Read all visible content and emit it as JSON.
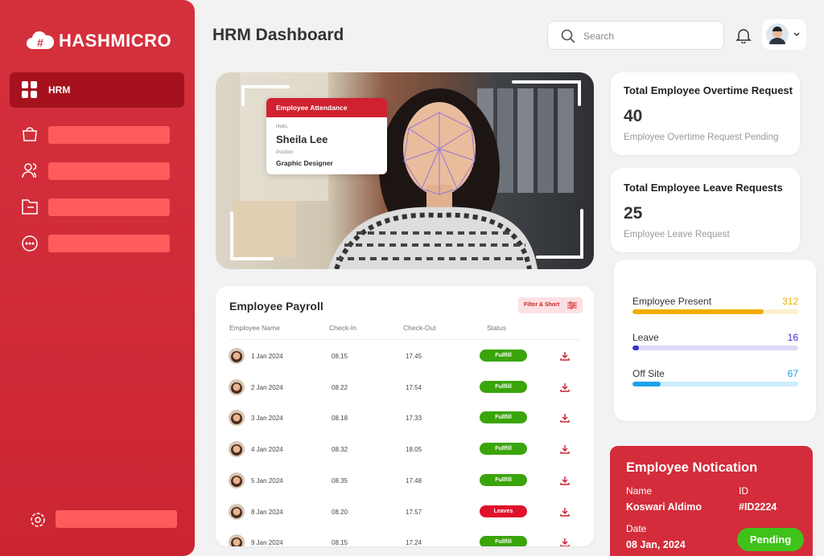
{
  "brand": "HASHMICRO",
  "sidebar": {
    "active_item": "HRM"
  },
  "header": {
    "title": "HRM Dashboard",
    "search_placeholder": "Search"
  },
  "attendance_card": {
    "title": "Employee Attendance",
    "greeting": "Hello,",
    "name": "Sheila Lee",
    "position_label": "Position",
    "position": "Graphic Designer"
  },
  "overtime_card": {
    "title": "Total Employee Overtime Request",
    "value": 40,
    "caption": "Employee Overtime Request Pending"
  },
  "leave_card": {
    "title": "Total Employee Leave Requests",
    "value": 25,
    "caption": "Employee Leave Request"
  },
  "presence": {
    "items": [
      {
        "label": "Employee Present",
        "value": 312,
        "color": "#f2ad00",
        "track": "#fcf0cc"
      },
      {
        "label": "Leave",
        "value": 16,
        "color": "#3a2ec4",
        "track": "#dedaf7"
      },
      {
        "label": "Off Site",
        "value": 67,
        "color": "#1ba2ea",
        "track": "#cdeefb"
      }
    ]
  },
  "payroll": {
    "title": "Employee Payroll",
    "filter_button": "Filter & Short",
    "columns": [
      "Employee Name",
      "Check-In",
      "Check-Out",
      "Status"
    ],
    "rows": [
      {
        "date": "1 Jan 2024",
        "check_in": "08.15",
        "check_out": "17.45",
        "status": "Fullfill",
        "status_color": "#3aa40b"
      },
      {
        "date": "2 Jan 2024",
        "check_in": "08.22",
        "check_out": "17.54",
        "status": "Fullfill",
        "status_color": "#3aa40b"
      },
      {
        "date": "3 Jan 2024",
        "check_in": "08.18",
        "check_out": "17.33",
        "status": "Fullfill",
        "status_color": "#3aa40b"
      },
      {
        "date": "4 Jan 2024",
        "check_in": "08.32",
        "check_out": "18.05",
        "status": "Fullfill",
        "status_color": "#3aa40b"
      },
      {
        "date": "5 Jan 2024",
        "check_in": "08.35",
        "check_out": "17.48",
        "status": "Fullfill",
        "status_color": "#3aa40b"
      },
      {
        "date": "8 Jan 2024",
        "check_in": "08.20",
        "check_out": "17.57",
        "status": "Leaves",
        "status_color": "#e0112b"
      },
      {
        "date": "9 Jan 2024",
        "check_in": "08.15",
        "check_out": "17.24",
        "status": "Fullfill",
        "status_color": "#3aa40b"
      }
    ]
  },
  "notification": {
    "title": "Employee Notication",
    "name_label": "Name",
    "name": "Koswari Aldimo",
    "id_label": "ID",
    "id": "#ID2224",
    "date_label": "Date",
    "date": "08 Jan, 2024",
    "status": "Pending"
  }
}
